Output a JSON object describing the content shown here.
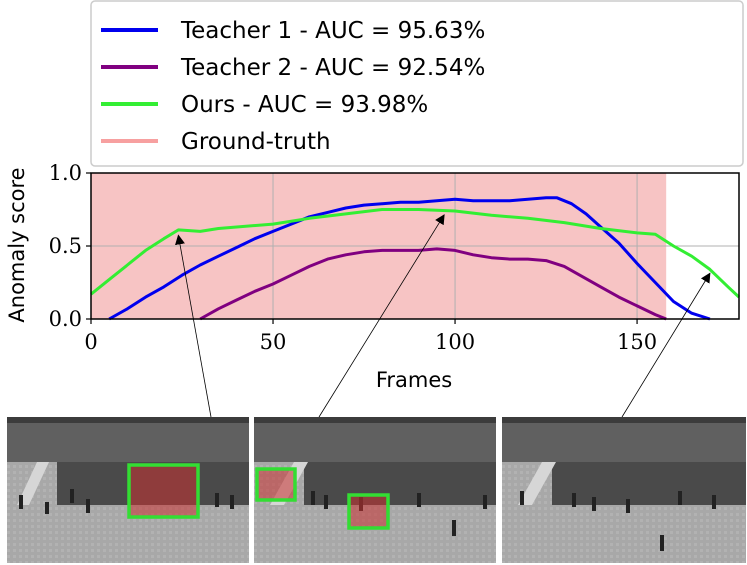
{
  "chart_data": {
    "type": "line",
    "xlabel": "Frames",
    "ylabel": "Anomaly score",
    "xlim": [
      0,
      178
    ],
    "ylim": [
      0,
      1
    ],
    "xticks": [
      0,
      50,
      100,
      150
    ],
    "xtick_labels": [
      "0",
      "50",
      "100",
      "150"
    ],
    "yticks": [
      0,
      0.5,
      1
    ],
    "ytick_labels": [
      "0.0",
      "0.5",
      "1.0"
    ],
    "grid": true,
    "legend_position": "top",
    "ground_truth_region": {
      "x_start": 0,
      "x_end": 158,
      "label": "Ground-truth",
      "color": "#f7a0a0"
    },
    "series": [
      {
        "name": "Teacher 1 - AUC = 95.63%",
        "color": "#0000ee",
        "x": [
          5,
          10,
          15,
          20,
          25,
          30,
          35,
          40,
          45,
          50,
          55,
          60,
          65,
          70,
          75,
          80,
          85,
          90,
          95,
          100,
          105,
          110,
          115,
          120,
          125,
          128,
          132,
          136,
          140,
          145,
          150,
          155,
          160,
          165,
          170
        ],
        "y": [
          0.0,
          0.07,
          0.15,
          0.22,
          0.3,
          0.37,
          0.43,
          0.49,
          0.55,
          0.6,
          0.65,
          0.7,
          0.73,
          0.76,
          0.78,
          0.79,
          0.8,
          0.8,
          0.81,
          0.82,
          0.81,
          0.81,
          0.81,
          0.82,
          0.83,
          0.83,
          0.79,
          0.72,
          0.63,
          0.52,
          0.38,
          0.25,
          0.12,
          0.04,
          0.0
        ]
      },
      {
        "name": "Teacher 2 - AUC = 92.54%",
        "color": "#800080",
        "x": [
          30,
          35,
          40,
          45,
          50,
          55,
          60,
          65,
          70,
          75,
          80,
          85,
          90,
          95,
          100,
          105,
          110,
          115,
          120,
          125,
          130,
          135,
          140,
          145,
          150,
          155,
          158
        ],
        "y": [
          0.0,
          0.07,
          0.13,
          0.19,
          0.24,
          0.3,
          0.36,
          0.41,
          0.44,
          0.46,
          0.47,
          0.47,
          0.47,
          0.48,
          0.47,
          0.44,
          0.42,
          0.41,
          0.41,
          0.4,
          0.36,
          0.29,
          0.22,
          0.15,
          0.09,
          0.03,
          0.0
        ]
      },
      {
        "name": "Ours - AUC = 93.98%",
        "color": "#33ee33",
        "x": [
          0,
          5,
          10,
          15,
          20,
          24,
          30,
          35,
          40,
          50,
          60,
          70,
          80,
          90,
          100,
          110,
          120,
          130,
          140,
          150,
          155,
          160,
          165,
          170,
          175,
          178
        ],
        "y": [
          0.17,
          0.27,
          0.37,
          0.47,
          0.55,
          0.61,
          0.6,
          0.62,
          0.63,
          0.65,
          0.69,
          0.72,
          0.75,
          0.75,
          0.74,
          0.71,
          0.69,
          0.66,
          0.62,
          0.59,
          0.58,
          0.5,
          0.43,
          0.34,
          0.22,
          0.15
        ]
      }
    ],
    "annotations": [
      {
        "target_x": 24,
        "target_y": 0.6,
        "points_to": "thumbnail-1"
      },
      {
        "target_x": 97,
        "target_y": 0.74,
        "points_to": "thumbnail-2"
      },
      {
        "target_x": 170,
        "target_y": 0.34,
        "points_to": "thumbnail-3"
      }
    ]
  },
  "legend": {
    "items": [
      {
        "label": "Teacher 1 - AUC = 95.63%",
        "color": "#0000ee"
      },
      {
        "label": "Teacher 2 - AUC = 92.54%",
        "color": "#800080"
      },
      {
        "label": "Ours - AUC = 93.98%",
        "color": "#33ee33"
      },
      {
        "label": "Ground-truth",
        "color": "#f7a0a0"
      }
    ]
  },
  "thumbnails": [
    {
      "name": "thumbnail-1",
      "detections": 1
    },
    {
      "name": "thumbnail-2",
      "detections": 2
    },
    {
      "name": "thumbnail-3",
      "detections": 0
    }
  ],
  "colors": {
    "detection_box": "#33dd33",
    "detection_fill": "#c83232",
    "scene_ground": "#b4b4b4",
    "scene_grass": "#505050"
  }
}
